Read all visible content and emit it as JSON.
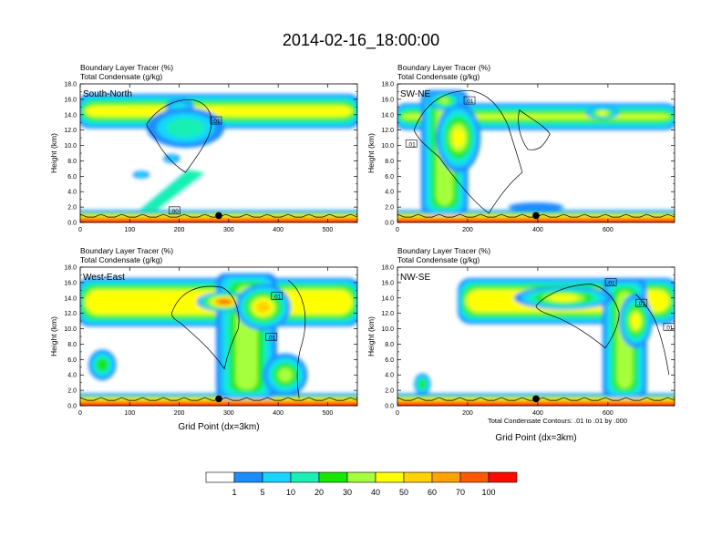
{
  "title": "2014-02-16_18:00:00",
  "footnote": "Total Condensate Contours: .01 to .01 by .000",
  "shared_xlabel": "Grid Point (dx=3km)",
  "colorbar": {
    "colors": [
      "#ffffff",
      "#1e8cff",
      "#19d4ff",
      "#19f0b4",
      "#19e600",
      "#a6ff3c",
      "#ffff00",
      "#ffd200",
      "#ffa300",
      "#ff5a00",
      "#ff0a00"
    ],
    "labels": [
      "1",
      "5",
      "10",
      "20",
      "30",
      "40",
      "50",
      "60",
      "70",
      "100"
    ]
  },
  "chart_data": [
    {
      "type": "heatmap",
      "line1": "Boundary Layer Tracer",
      "unit1": "(%)",
      "line2": "Total Condensate",
      "unit2": "(g/kg)",
      "panel_label": "South-North",
      "ylabel": "Height (km)",
      "xlabel": "",
      "xlim": [
        0,
        560
      ],
      "ylim": [
        0,
        18
      ],
      "xticks": [
        "0",
        "100",
        "200",
        "300",
        "400",
        "500"
      ],
      "yticks": [
        "0.0",
        "2.0",
        "4.0",
        "6.0",
        "8.0",
        "10.0",
        "12.0",
        "14.0",
        "16.0",
        "18.0"
      ],
      "contour_labels": [
        ".01",
        ".00"
      ],
      "marker_x": 280
    },
    {
      "type": "heatmap",
      "line1": "Boundary Layer Tracer",
      "unit1": "(%)",
      "line2": "Total Condensate",
      "unit2": "(g/kg)",
      "panel_label": "SW-NE",
      "ylabel": "Height (km)",
      "xlabel": "",
      "xlim": [
        0,
        790
      ],
      "ylim": [
        0,
        18
      ],
      "xticks": [
        "0",
        "200",
        "400",
        "600"
      ],
      "yticks": [
        "0.0",
        "2.0",
        "4.0",
        "6.0",
        "8.0",
        "10.0",
        "12.0",
        "14.0",
        "16.0",
        "18.0"
      ],
      "contour_labels": [
        ".01",
        ".01"
      ],
      "marker_x": 395
    },
    {
      "type": "heatmap",
      "line1": "Boundary Layer Tracer",
      "unit1": "(%)",
      "line2": "Total Condensate",
      "unit2": "(g/kg)",
      "panel_label": "West-East",
      "ylabel": "Height (km)",
      "xlabel": "Grid Point (dx=3km)",
      "xlim": [
        0,
        560
      ],
      "ylim": [
        0,
        18
      ],
      "xticks": [
        "0",
        "100",
        "200",
        "300",
        "400",
        "500"
      ],
      "yticks": [
        "0.0",
        "2.0",
        "4.0",
        "6.0",
        "8.0",
        "10.0",
        "12.0",
        "14.0",
        "16.0",
        "18.0"
      ],
      "contour_labels": [
        ".01",
        ".01"
      ],
      "marker_x": 280
    },
    {
      "type": "heatmap",
      "line1": "Boundary Layer Tracer",
      "unit1": "(%)",
      "line2": "Total Condensate",
      "unit2": "(g/kg)",
      "panel_label": "NW-SE",
      "ylabel": "Height (km)",
      "xlabel": "Grid Point (dx=3km)",
      "xlim": [
        0,
        790
      ],
      "ylim": [
        0,
        18
      ],
      "xticks": [
        "0",
        "200",
        "400",
        "600"
      ],
      "yticks": [
        "0.0",
        "2.0",
        "4.0",
        "6.0",
        "8.0",
        "10.0",
        "12.0",
        "14.0",
        "16.0",
        "18.0"
      ],
      "contour_labels": [
        ".01",
        ".01",
        ".01"
      ],
      "marker_x": 395
    }
  ]
}
